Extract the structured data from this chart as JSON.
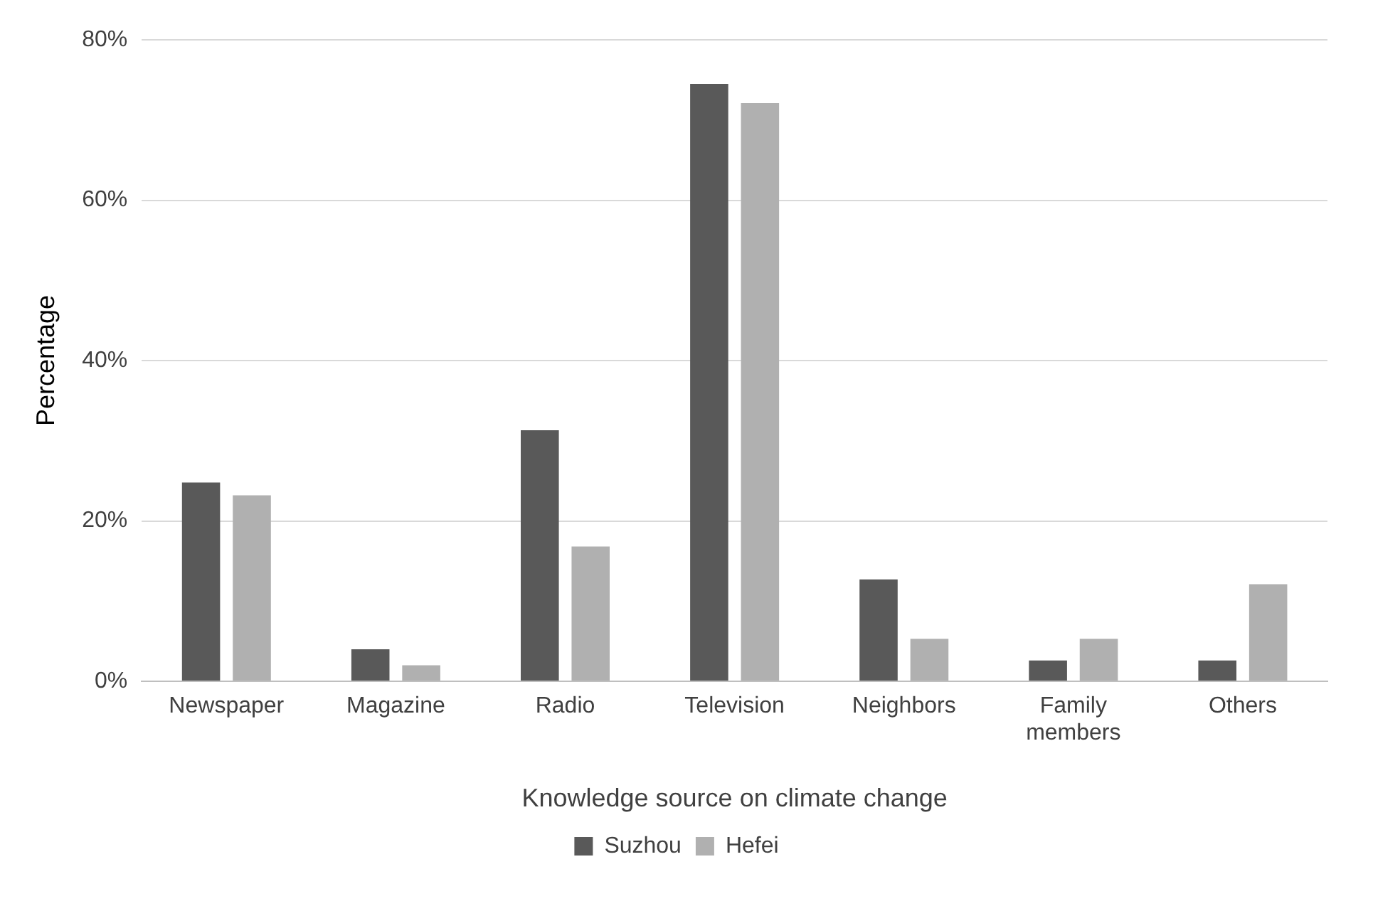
{
  "chart_data": {
    "type": "bar",
    "xlabel": "Knowledge source on climate change",
    "ylabel": "Percentage",
    "categories": [
      "Newspaper",
      "Magazine",
      "Radio",
      "Television",
      "Neighbors",
      "Family members",
      "Others"
    ],
    "series": [
      {
        "name": "Suzhou",
        "color": "#595959",
        "values": [
          24.8,
          4.0,
          31.3,
          74.5,
          12.7,
          2.6,
          2.6
        ]
      },
      {
        "name": "Hefei",
        "color": "#b0b0b0",
        "values": [
          23.2,
          2.0,
          16.8,
          72.1,
          5.3,
          5.3,
          12.1
        ]
      }
    ],
    "ylim": [
      0,
      80
    ],
    "yticks": [
      {
        "value": 0,
        "label": "0%"
      },
      {
        "value": 20,
        "label": "20%"
      },
      {
        "value": 40,
        "label": "40%"
      },
      {
        "value": 60,
        "label": "60%"
      },
      {
        "value": 80,
        "label": "80%"
      }
    ],
    "grid": "y",
    "legend": "bottom"
  }
}
